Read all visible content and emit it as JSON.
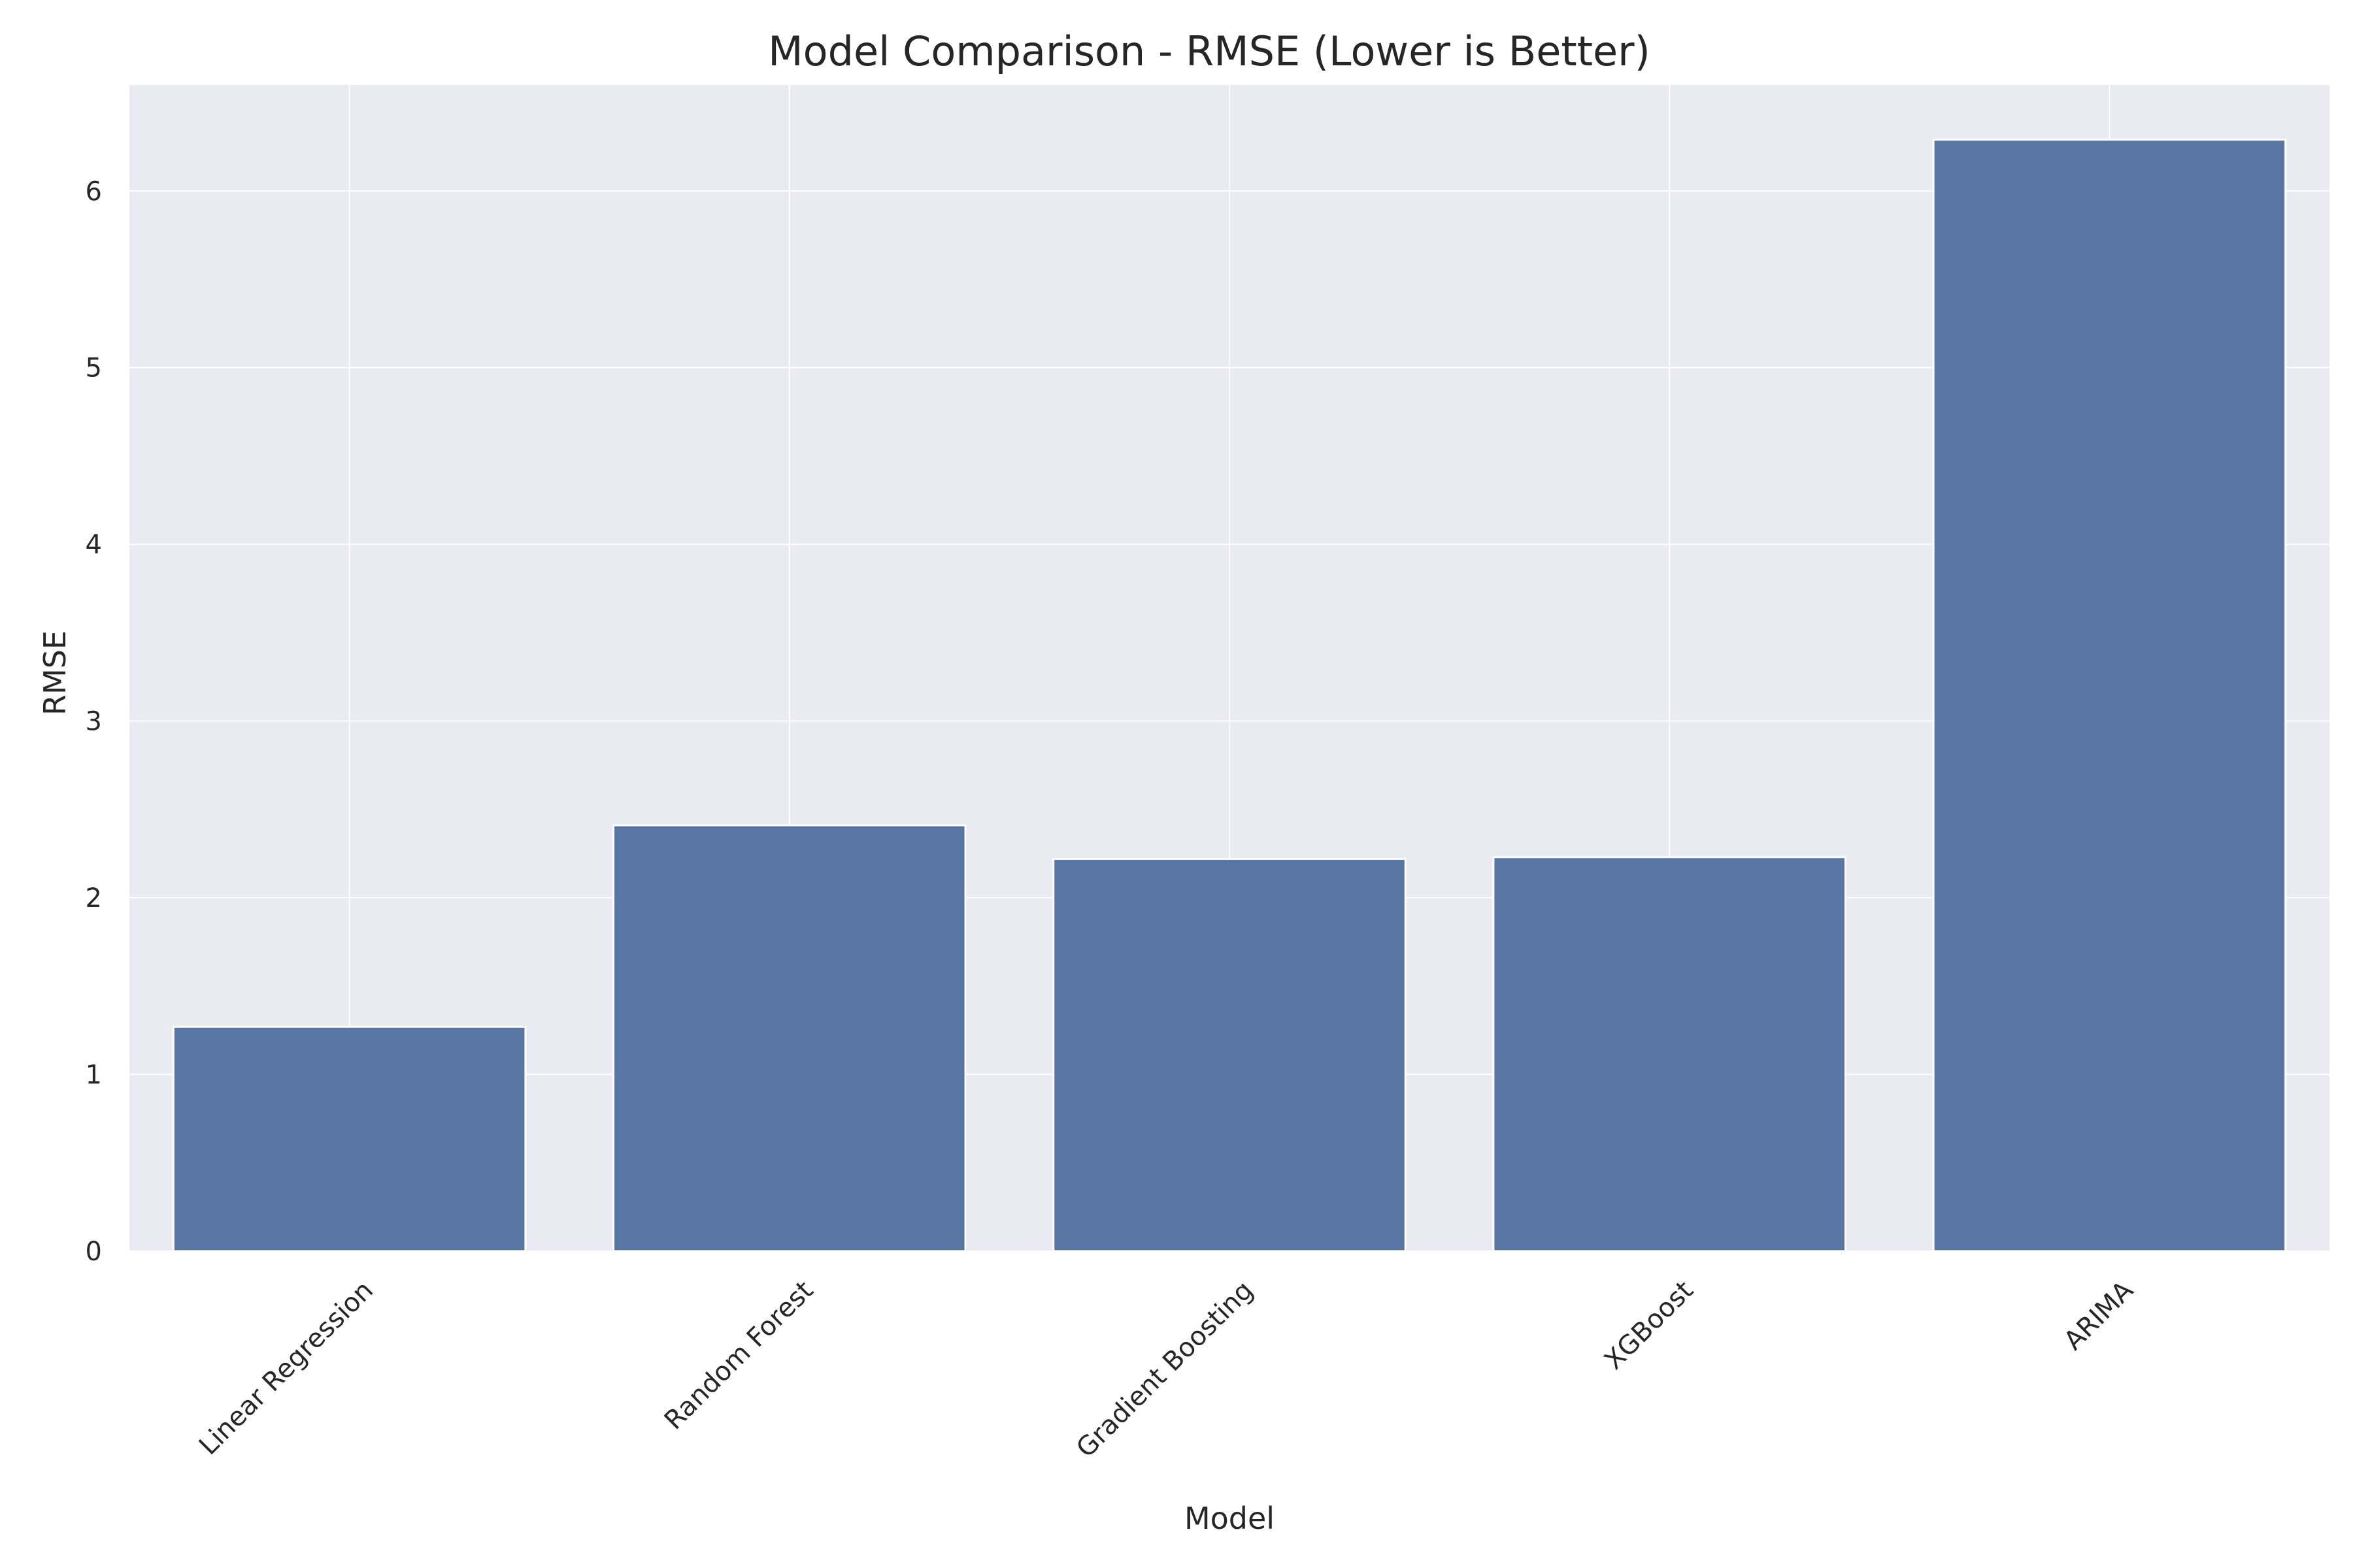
{
  "chart_data": {
    "type": "bar",
    "title": "Model Comparison - RMSE (Lower is Better)",
    "xlabel": "Model",
    "ylabel": "RMSE",
    "categories": [
      "Linear Regression",
      "Random Forest",
      "Gradient Boosting",
      "XGBoost",
      "ARIMA"
    ],
    "values": [
      1.27,
      2.41,
      2.22,
      2.23,
      6.29
    ],
    "ylim": [
      0,
      6.6
    ],
    "yticks": [
      0,
      1,
      2,
      3,
      4,
      5,
      6
    ],
    "grid": true,
    "legend": "none",
    "colors": {
      "bar": "#5975a4",
      "plot_background": "#eaeaf2",
      "grid": "#ffffff",
      "text": "#262626"
    }
  }
}
